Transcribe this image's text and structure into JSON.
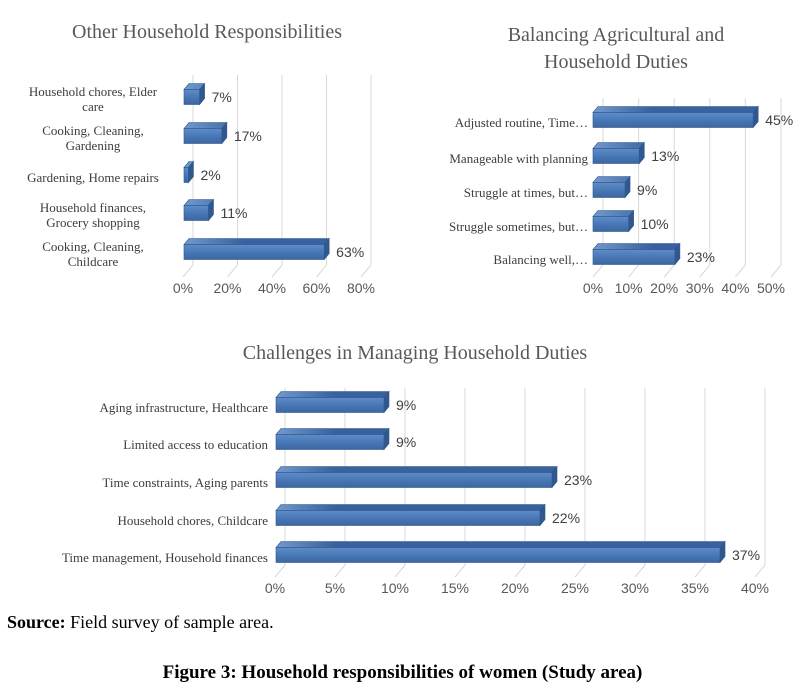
{
  "figure": {
    "source_label": "Source:",
    "source_text": "Field survey of sample area.",
    "caption": "Figure 3: Household responsibilities of women (Study area)"
  },
  "colors": {
    "bar_front": "#4a7ab8",
    "bar_front_light": "#5e8cc8",
    "bar_front_dark": "#3c66a1",
    "bar_top": "#38619d",
    "bar_top_highlight": "#7199cd",
    "bar_side": "#30588f",
    "bar_outline": "#2f5790",
    "gridline": "#d8d8d8",
    "title_text": "#595959",
    "category_text": "#3d3d3d",
    "value_text": "#404040",
    "tick_text": "#595959"
  },
  "chart_data": [
    {
      "type": "bar",
      "orientation": "horizontal-3d",
      "title": "Other Household Responsibilities",
      "title_lines": [
        "Other Household Responsibilities"
      ],
      "categories": [
        "Household chores, Elder care",
        "Cooking, Cleaning, Gardening",
        "Gardening, Home repairs",
        "Household finances, Grocery shopping",
        "Cooking, Cleaning, Childcare"
      ],
      "category_display_lines": [
        [
          "Household chores, Elder",
          "care"
        ],
        [
          "Cooking, Cleaning,",
          "Gardening"
        ],
        [
          "Gardening, Home repairs"
        ],
        [
          "Household finances,",
          "Grocery shopping"
        ],
        [
          "Cooking, Cleaning,",
          "Childcare"
        ]
      ],
      "values": [
        7,
        17,
        2,
        11,
        63
      ],
      "value_labels": [
        "7%",
        "17%",
        "2%",
        "11%",
        "63%"
      ],
      "xlim": [
        0,
        80
      ],
      "ticks": [
        0,
        20,
        40,
        60,
        80
      ],
      "tick_labels": [
        "0%",
        "20%",
        "40%",
        "60%",
        "80%"
      ],
      "grid": true,
      "legend": false
    },
    {
      "type": "bar",
      "orientation": "horizontal-3d",
      "title": "Balancing Agricultural and Household Duties",
      "title_lines": [
        "Balancing Agricultural and",
        "Household Duties"
      ],
      "categories": [
        "Adjusted routine, Time…",
        "Manageable with planning",
        "Struggle at times, but…",
        "Struggle sometimes, but…",
        "Balancing well,…"
      ],
      "category_display_lines": [
        [
          "Adjusted routine, Time…"
        ],
        [
          "Manageable with planning"
        ],
        [
          "Struggle at times, but…"
        ],
        [
          "Struggle sometimes, but…"
        ],
        [
          "Balancing well,…"
        ]
      ],
      "values": [
        45,
        13,
        9,
        10,
        23
      ],
      "value_labels": [
        "45%",
        "13%",
        "9%",
        "10%",
        "23%"
      ],
      "xlim": [
        0,
        50
      ],
      "ticks": [
        0,
        10,
        20,
        30,
        40,
        50
      ],
      "tick_labels": [
        "0%",
        "10%",
        "20%",
        "30%",
        "40%",
        "50%"
      ],
      "grid": true,
      "legend": false
    },
    {
      "type": "bar",
      "orientation": "horizontal-3d",
      "title": "Challenges in Managing Household Duties",
      "title_lines": [
        "Challenges in Managing Household Duties"
      ],
      "categories": [
        "Aging infrastructure, Healthcare",
        "Limited access to education",
        "Time constraints, Aging parents",
        "Household chores, Childcare",
        "Time management, Household finances"
      ],
      "category_display_lines": [
        [
          "Aging infrastructure, Healthcare"
        ],
        [
          "Limited access to education"
        ],
        [
          "Time constraints, Aging parents"
        ],
        [
          "Household chores, Childcare"
        ],
        [
          "Time management, Household finances"
        ]
      ],
      "values": [
        9,
        9,
        23,
        22,
        37
      ],
      "value_labels": [
        "9%",
        "9%",
        "23%",
        "22%",
        "37%"
      ],
      "xlim": [
        0,
        40
      ],
      "ticks": [
        0,
        5,
        10,
        15,
        20,
        25,
        30,
        35,
        40
      ],
      "tick_labels": [
        "0%",
        "5%",
        "10%",
        "15%",
        "20%",
        "25%",
        "30%",
        "35%",
        "40%"
      ],
      "grid": true,
      "legend": false
    }
  ]
}
